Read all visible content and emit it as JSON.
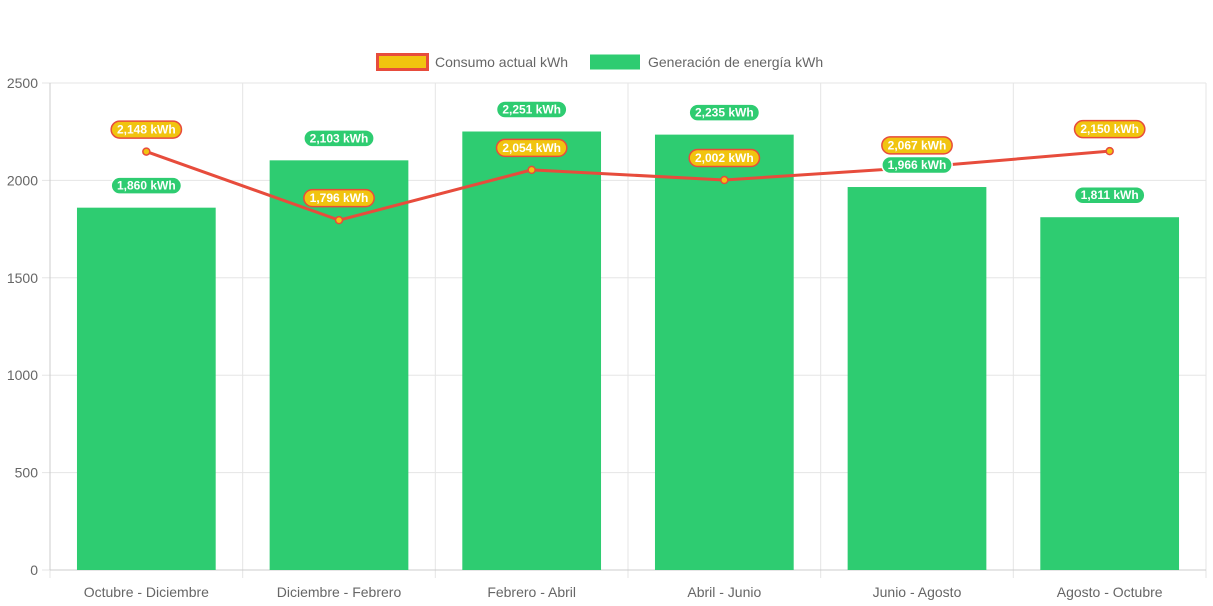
{
  "chart_data": {
    "type": "bar",
    "title": "",
    "xlabel": "",
    "ylabel": "",
    "ylim": [
      0,
      2500
    ],
    "yticks": [
      0,
      500,
      1000,
      1500,
      2000,
      2500
    ],
    "grid": true,
    "legend_position": "top",
    "categories": [
      "Octubre - Diciembre",
      "Diciembre - Febrero",
      "Febrero - Abril",
      "Abril - Junio",
      "Junio - Agosto",
      "Agosto - Octubre"
    ],
    "series": [
      {
        "name": "Consumo actual kWh",
        "type": "line",
        "color": "#e74c3c",
        "fill": "#f1c40f",
        "values": [
          2148,
          1796,
          2054,
          2002,
          2067,
          2150
        ],
        "labels": [
          "2,148 kWh",
          "1,796 kWh",
          "2,054 kWh",
          "2,002 kWh",
          "2,067 kWh",
          "2,150 kWh"
        ]
      },
      {
        "name": "Generación de energía kWh",
        "type": "bar",
        "color": "#2ecc71",
        "values": [
          1860,
          2103,
          2251,
          2235,
          1966,
          1811
        ],
        "labels": [
          "1,860 kWh",
          "2,103 kWh",
          "2,251 kWh",
          "2,235 kWh",
          "1,966 kWh",
          "1,811 kWh"
        ]
      }
    ]
  }
}
